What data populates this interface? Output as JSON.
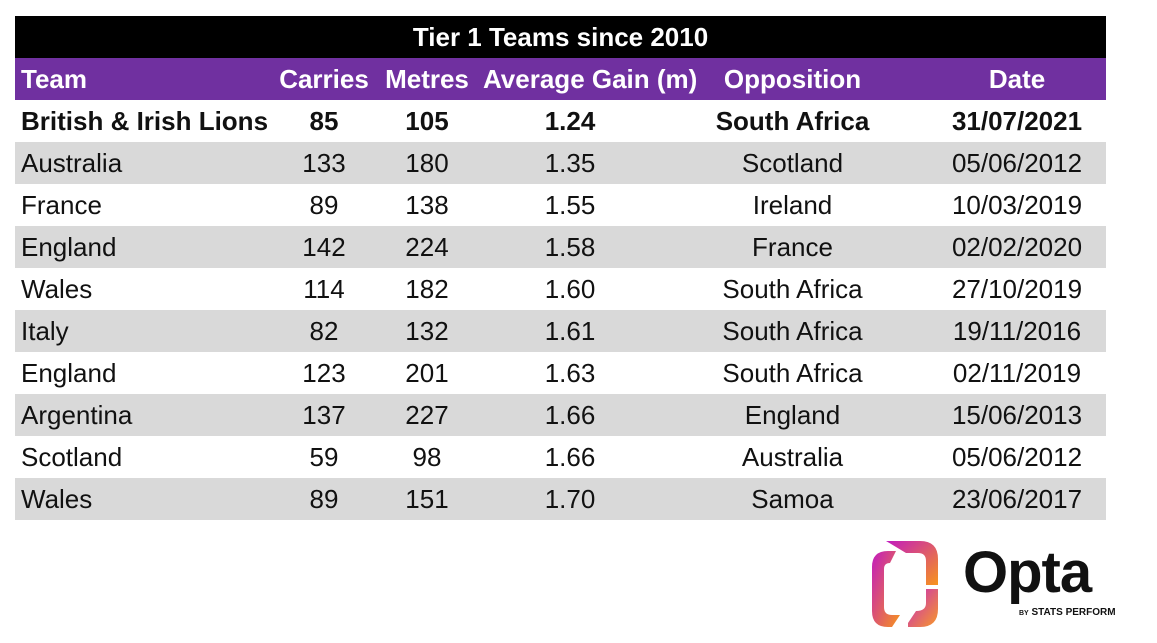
{
  "chart_data": {
    "type": "table",
    "title": "Tier 1 Teams since 2010",
    "columns": [
      "Team",
      "Carries",
      "Metres",
      "Average Gain (m)",
      "Opposition",
      "Date"
    ],
    "rows": [
      [
        "British & Irish Lions",
        "85",
        "105",
        "1.24",
        "South Africa",
        "31/07/2021"
      ],
      [
        "Australia",
        "133",
        "180",
        "1.35",
        "Scotland",
        "05/06/2012"
      ],
      [
        "France",
        "89",
        "138",
        "1.55",
        "Ireland",
        "10/03/2019"
      ],
      [
        "England",
        "142",
        "224",
        "1.58",
        "France",
        "02/02/2020"
      ],
      [
        "Wales",
        "114",
        "182",
        "1.60",
        "South Africa",
        "27/10/2019"
      ],
      [
        "Italy",
        "82",
        "132",
        "1.61",
        "South Africa",
        "19/11/2016"
      ],
      [
        "England",
        "123",
        "201",
        "1.63",
        "South Africa",
        "02/11/2019"
      ],
      [
        "Argentina",
        "137",
        "227",
        "1.66",
        "England",
        "15/06/2013"
      ],
      [
        "Scotland",
        "59",
        "98",
        "1.66",
        "Australia",
        "05/06/2012"
      ],
      [
        "Wales",
        "89",
        "151",
        "1.70",
        "Samoa",
        "23/06/2017"
      ]
    ],
    "highlighted_row": 0,
    "colors": {
      "title_bg": "#000000",
      "header_bg": "#7030a0",
      "stripe_bg": "#d9d9d9"
    }
  },
  "logo": {
    "brand": "Opta",
    "by": "BY",
    "company": "STATS PERFORM",
    "colors": [
      "#c21bbf",
      "#f7941d"
    ]
  }
}
